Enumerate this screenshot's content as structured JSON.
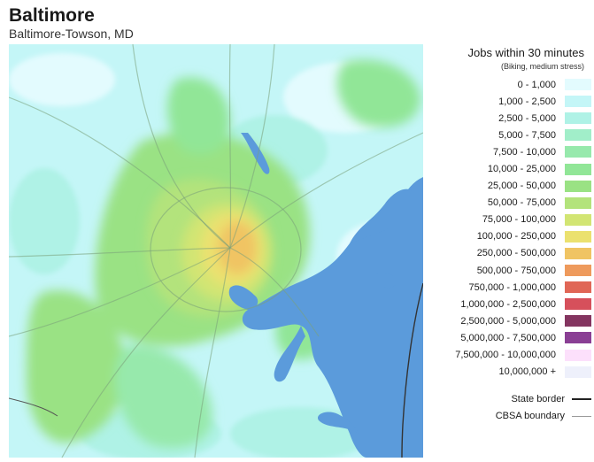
{
  "header": {
    "title": "Baltimore",
    "subtitle": "Baltimore-Towson, MD"
  },
  "legend": {
    "title": "Jobs within 30 minutes",
    "subtitle": "(Biking, medium stress)",
    "bins": [
      {
        "label": "0 - 1,000",
        "color": "#e3fbfe"
      },
      {
        "label": "1,000 - 2,500",
        "color": "#c4f6f7"
      },
      {
        "label": "2,500 - 5,000",
        "color": "#aff2e6"
      },
      {
        "label": "5,000 - 7,500",
        "color": "#a1eec9"
      },
      {
        "label": "7,500 - 10,000",
        "color": "#97e9ac"
      },
      {
        "label": "10,000 - 25,000",
        "color": "#91e697"
      },
      {
        "label": "25,000 - 50,000",
        "color": "#9ae284"
      },
      {
        "label": "50,000 - 75,000",
        "color": "#b3e37b"
      },
      {
        "label": "75,000 - 100,000",
        "color": "#d2e573"
      },
      {
        "label": "100,000 - 250,000",
        "color": "#ebe16f"
      },
      {
        "label": "250,000 - 500,000",
        "color": "#f0c463"
      },
      {
        "label": "500,000 - 750,000",
        "color": "#ee9a5c"
      },
      {
        "label": "750,000 - 1,000,000",
        "color": "#e06656"
      },
      {
        "label": "1,000,000 - 2,500,000",
        "color": "#d6505b"
      },
      {
        "label": "2,500,000 - 5,000,000",
        "color": "#843560"
      },
      {
        "label": "5,000,000 - 7,500,000",
        "color": "#8a3f94"
      },
      {
        "label": "7,500,000 - 10,000,000",
        "color": "#fce0fb"
      },
      {
        "label": "10,000,000 +",
        "color": "#eef0fb"
      }
    ],
    "borders": [
      {
        "label": "State border",
        "color": "#222222",
        "style": "solid-thick"
      },
      {
        "label": "CBSA boundary",
        "color": "#9a9a9a",
        "style": "solid-thin"
      }
    ]
  },
  "map": {
    "water_color": "#5b9bdb"
  }
}
